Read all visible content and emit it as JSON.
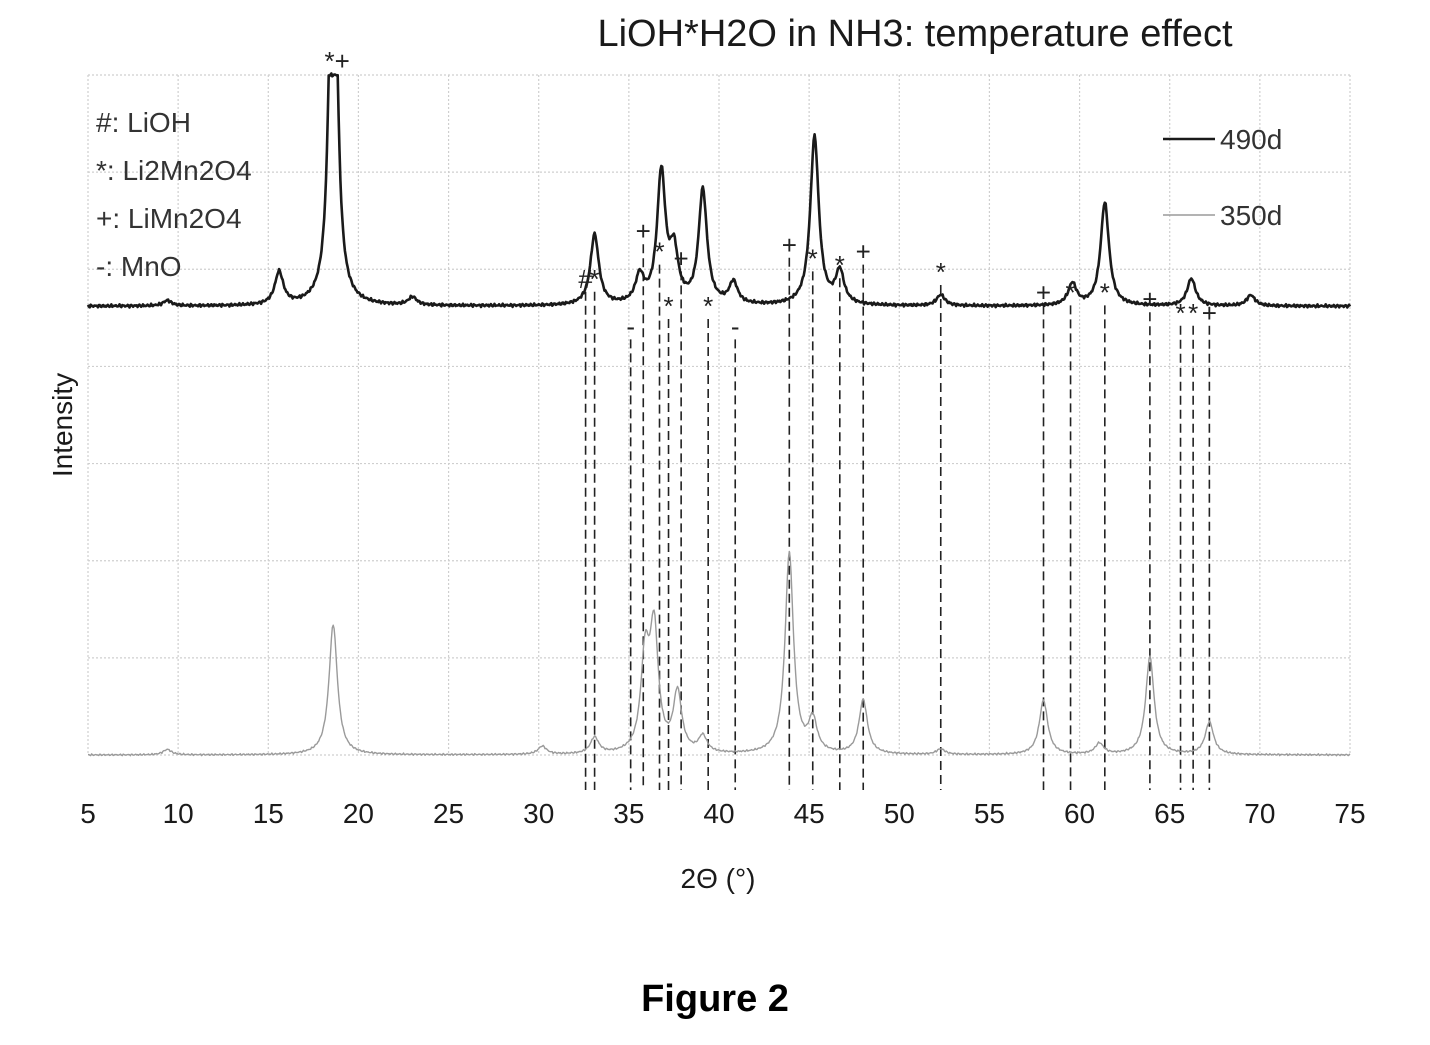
{
  "figure_caption": "Figure 2",
  "chart_data": {
    "type": "line",
    "title": "LiOH*H2O in NH3: temperature effect",
    "xlabel": "2Θ (°)",
    "ylabel": "Intensity",
    "xlim": [
      5,
      75
    ],
    "xticks": [
      5,
      10,
      15,
      20,
      25,
      30,
      35,
      40,
      45,
      50,
      55,
      60,
      65,
      70,
      75
    ],
    "grid": true,
    "legend_position": "top-right",
    "phase_key": [
      {
        "symbol": "#",
        "label": "#: LiOH"
      },
      {
        "symbol": "*",
        "label": "*: Li2Mn2O4"
      },
      {
        "symbol": "+",
        "label": "+: LiMn2O4"
      },
      {
        "symbol": "-",
        "label": "-: MnO"
      }
    ],
    "series": [
      {
        "name": "490d",
        "style": "thick",
        "color": "#1a1a1a",
        "baseline": 0.66,
        "peaks": [
          {
            "x": 9.4,
            "h": 0.01
          },
          {
            "x": 15.6,
            "h": 0.06
          },
          {
            "x": 18.6,
            "h": 1.0
          },
          {
            "x": 23.0,
            "h": 0.015
          },
          {
            "x": 33.1,
            "h": 0.13
          },
          {
            "x": 35.6,
            "h": 0.05
          },
          {
            "x": 36.8,
            "h": 0.24
          },
          {
            "x": 37.5,
            "h": 0.09
          },
          {
            "x": 39.1,
            "h": 0.21
          },
          {
            "x": 40.8,
            "h": 0.04
          },
          {
            "x": 45.3,
            "h": 0.31
          },
          {
            "x": 46.7,
            "h": 0.06
          },
          {
            "x": 52.3,
            "h": 0.02
          },
          {
            "x": 59.6,
            "h": 0.04
          },
          {
            "x": 61.4,
            "h": 0.19
          },
          {
            "x": 66.2,
            "h": 0.05
          },
          {
            "x": 69.5,
            "h": 0.02
          }
        ]
      },
      {
        "name": "350d",
        "style": "thin",
        "color": "#9a9a9a",
        "baseline": 0.0,
        "peaks": [
          {
            "x": 9.4,
            "h": 0.01
          },
          {
            "x": 18.6,
            "h": 0.24
          },
          {
            "x": 30.2,
            "h": 0.015
          },
          {
            "x": 33.1,
            "h": 0.03
          },
          {
            "x": 35.9,
            "h": 0.17
          },
          {
            "x": 36.4,
            "h": 0.22
          },
          {
            "x": 37.7,
            "h": 0.11
          },
          {
            "x": 39.1,
            "h": 0.03
          },
          {
            "x": 43.9,
            "h": 0.37
          },
          {
            "x": 45.2,
            "h": 0.06
          },
          {
            "x": 48.0,
            "h": 0.1
          },
          {
            "x": 52.3,
            "h": 0.01
          },
          {
            "x": 58.0,
            "h": 0.1
          },
          {
            "x": 61.1,
            "h": 0.02
          },
          {
            "x": 63.9,
            "h": 0.18
          },
          {
            "x": 67.2,
            "h": 0.06
          }
        ]
      }
    ],
    "reference_lines": [
      {
        "x": 32.6,
        "symbol": "#",
        "y": 0.69
      },
      {
        "x": 33.1,
        "symbol": "*",
        "y": 0.69
      },
      {
        "x": 35.1,
        "symbol": "-",
        "y": 0.62
      },
      {
        "x": 35.8,
        "symbol": "+",
        "y": 0.76
      },
      {
        "x": 36.7,
        "symbol": "*",
        "y": 0.73
      },
      {
        "x": 37.2,
        "symbol": "*",
        "y": 0.65
      },
      {
        "x": 37.9,
        "symbol": "+",
        "y": 0.72
      },
      {
        "x": 39.4,
        "symbol": "*",
        "y": 0.65
      },
      {
        "x": 40.9,
        "symbol": "-",
        "y": 0.62
      },
      {
        "x": 43.9,
        "symbol": "+",
        "y": 0.74
      },
      {
        "x": 45.2,
        "symbol": "*",
        "y": 0.72
      },
      {
        "x": 46.7,
        "symbol": "*",
        "y": 0.71
      },
      {
        "x": 48.0,
        "symbol": "+",
        "y": 0.73
      },
      {
        "x": 52.3,
        "symbol": "*",
        "y": 0.7
      },
      {
        "x": 58.0,
        "symbol": "+",
        "y": 0.67
      },
      {
        "x": 59.5,
        "symbol": "*",
        "y": 0.67
      },
      {
        "x": 61.4,
        "symbol": "*",
        "y": 0.67
      },
      {
        "x": 63.9,
        "symbol": "+",
        "y": 0.66
      },
      {
        "x": 65.6,
        "symbol": "*",
        "y": 0.64
      },
      {
        "x": 66.3,
        "symbol": "*",
        "y": 0.64
      },
      {
        "x": 67.2,
        "symbol": "+",
        "y": 0.64
      }
    ],
    "main_peak_label": {
      "x": 18.6,
      "text": "*+"
    }
  }
}
